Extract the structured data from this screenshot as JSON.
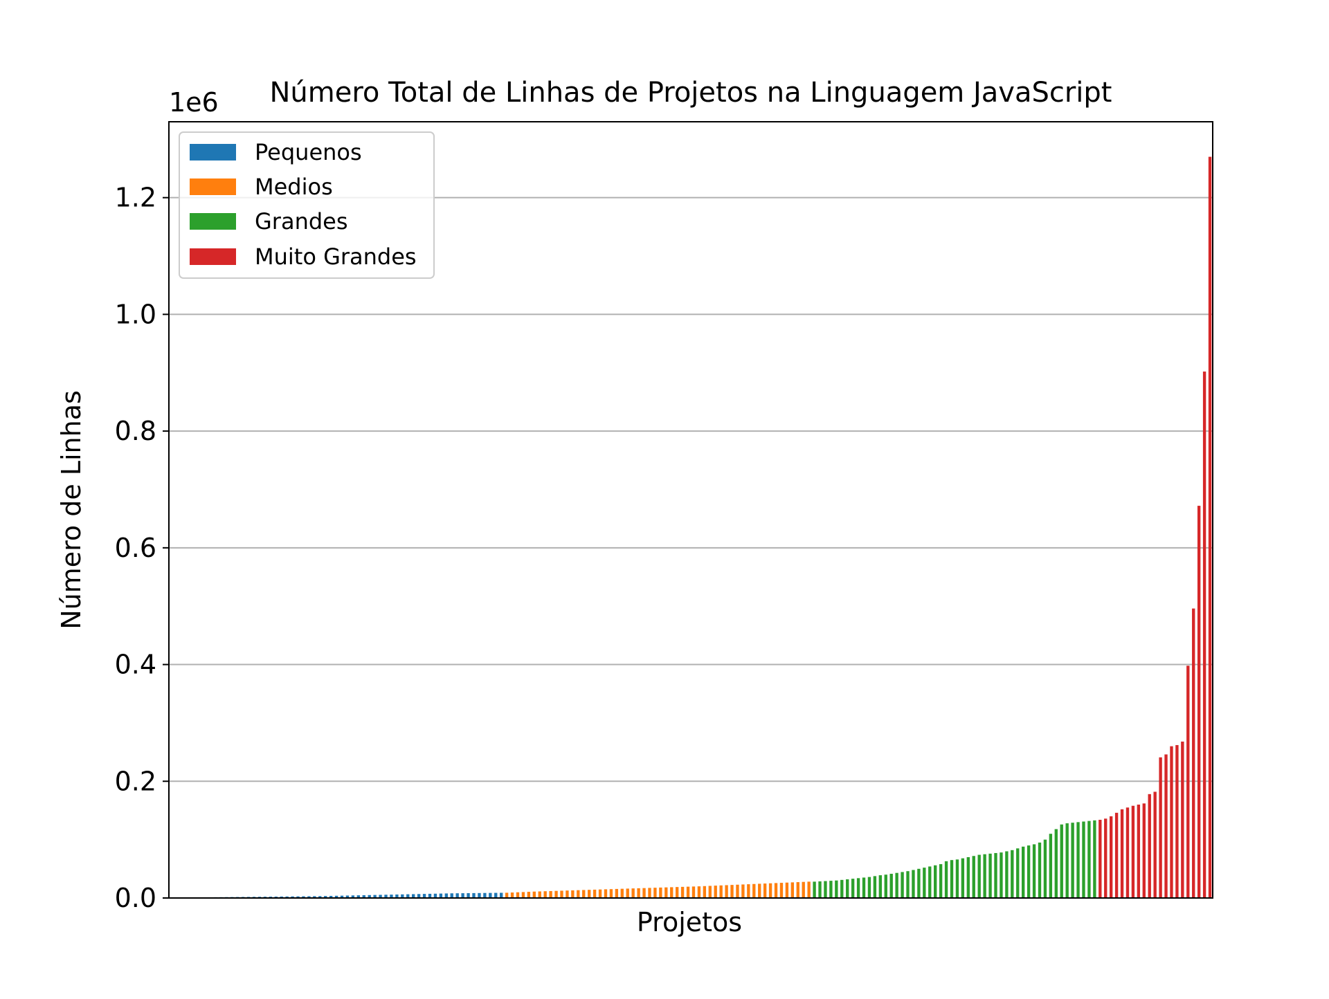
{
  "chart_data": {
    "type": "bar",
    "title": "Número Total de Linhas de Projetos na Linguagem JavaScript",
    "xlabel": "Projetos",
    "ylabel": "Número de Linhas",
    "offset_label": "1e6",
    "ylim": [
      0,
      1.33
    ],
    "y_ticks": [
      {
        "value": 0.0,
        "label": "0.0"
      },
      {
        "value": 0.2,
        "label": "0.2"
      },
      {
        "value": 0.4,
        "label": "0.4"
      },
      {
        "value": 0.6,
        "label": "0.6"
      },
      {
        "value": 0.8,
        "label": "0.8"
      },
      {
        "value": 1.0,
        "label": "1.0"
      },
      {
        "value": 1.2,
        "label": "1.2"
      }
    ],
    "grid": "y",
    "legend_position": "top-left",
    "series": [
      {
        "name": "Pequenos",
        "color": "#1f77b4",
        "values": [
          0.0005,
          0.0006,
          0.0007,
          0.0008,
          0.0009,
          0.001,
          0.0011,
          0.0012,
          0.0013,
          0.0014,
          0.0015,
          0.0016,
          0.0017,
          0.0018,
          0.0019,
          0.002,
          0.0021,
          0.0022,
          0.0023,
          0.0024,
          0.0025,
          0.0026,
          0.0027,
          0.0028,
          0.0029,
          0.003,
          0.0031,
          0.0032,
          0.0034,
          0.0036,
          0.0038,
          0.004,
          0.0042,
          0.0044,
          0.0046,
          0.0048,
          0.005,
          0.0052,
          0.0054,
          0.0056,
          0.0058,
          0.006,
          0.0062,
          0.0064,
          0.0066,
          0.0068,
          0.007,
          0.0072,
          0.0074,
          0.0076,
          0.0078,
          0.008,
          0.0081,
          0.0082,
          0.0083,
          0.0084,
          0.0085,
          0.0086,
          0.0087,
          0.0088,
          0.0089
        ]
      },
      {
        "name": "Medios",
        "color": "#ff7f0e",
        "values": [
          0.009,
          0.0094,
          0.0098,
          0.0102,
          0.0106,
          0.011,
          0.0113,
          0.0116,
          0.0119,
          0.0122,
          0.0125,
          0.0128,
          0.0131,
          0.0134,
          0.0137,
          0.014,
          0.0143,
          0.0146,
          0.0149,
          0.0152,
          0.0155,
          0.0158,
          0.0161,
          0.0164,
          0.0167,
          0.017,
          0.0173,
          0.0176,
          0.0179,
          0.0182,
          0.0185,
          0.0188,
          0.0191,
          0.0194,
          0.0197,
          0.02,
          0.0204,
          0.0208,
          0.0212,
          0.0216,
          0.022,
          0.0224,
          0.0228,
          0.0232,
          0.0236,
          0.024,
          0.0244,
          0.0248,
          0.0252,
          0.0256,
          0.026,
          0.0264,
          0.0268,
          0.0272,
          0.0276,
          0.028
        ]
      },
      {
        "name": "Grandes",
        "color": "#2ca02c",
        "values": [
          0.028,
          0.0285,
          0.029,
          0.0295,
          0.03,
          0.031,
          0.032,
          0.033,
          0.034,
          0.035,
          0.036,
          0.0375,
          0.039,
          0.04,
          0.0415,
          0.043,
          0.0445,
          0.046,
          0.048,
          0.05,
          0.052,
          0.054,
          0.056,
          0.058,
          0.063,
          0.065,
          0.066,
          0.068,
          0.07,
          0.072,
          0.074,
          0.075,
          0.076,
          0.077,
          0.078,
          0.08,
          0.082,
          0.085,
          0.088,
          0.09,
          0.092,
          0.095,
          0.1,
          0.11,
          0.118,
          0.126,
          0.128,
          0.129,
          0.13,
          0.131,
          0.132,
          0.133
        ]
      },
      {
        "name": "Muito Grandes",
        "color": "#d62728",
        "values": [
          0.134,
          0.136,
          0.14,
          0.146,
          0.152,
          0.155,
          0.158,
          0.16,
          0.162,
          0.178,
          0.182,
          0.241,
          0.246,
          0.26,
          0.262,
          0.268,
          0.398,
          0.496,
          0.672,
          0.902,
          1.27
        ]
      }
    ]
  }
}
